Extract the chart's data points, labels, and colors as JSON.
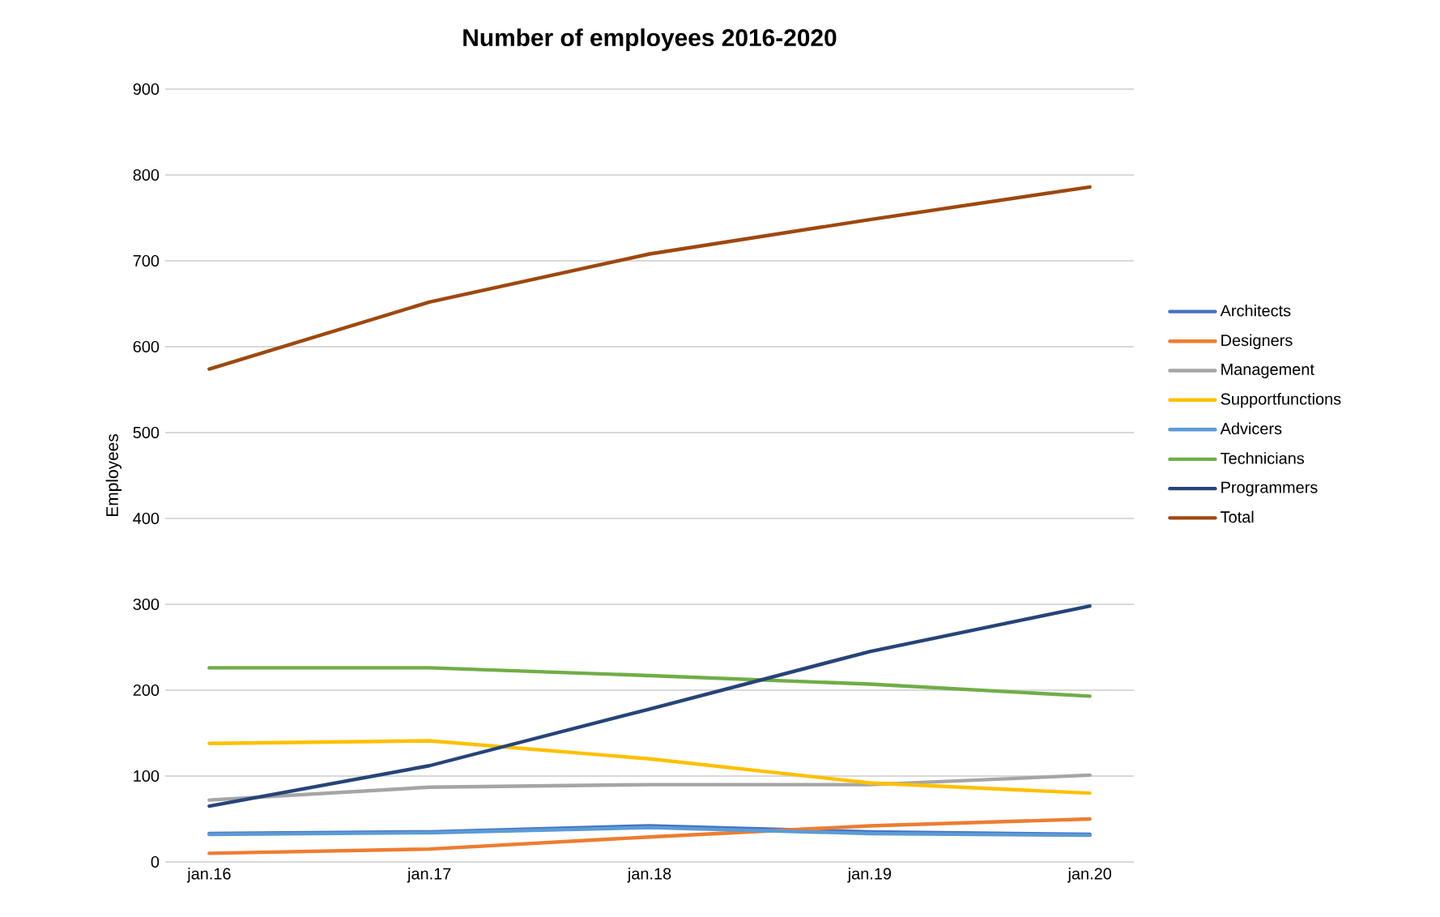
{
  "chart_data": {
    "type": "line",
    "title": "Number of employees 2016-2020",
    "ylabel": "Employees",
    "categories": [
      "jan.16",
      "jan.17",
      "jan.18",
      "jan.19",
      "jan.20"
    ],
    "series": [
      {
        "name": "Architects",
        "color": "#4472c4",
        "values": [
          33,
          35,
          42,
          35,
          32
        ]
      },
      {
        "name": "Designers",
        "color": "#ed7d31",
        "values": [
          10,
          15,
          29,
          42,
          50
        ]
      },
      {
        "name": "Management",
        "color": "#a5a5a5",
        "values": [
          72,
          87,
          90,
          90,
          101
        ]
      },
      {
        "name": "Supportfunctions",
        "color": "#ffc000",
        "values": [
          138,
          141,
          120,
          92,
          80
        ]
      },
      {
        "name": "Advicers",
        "color": "#5b9bd5",
        "values": [
          32,
          34,
          40,
          33,
          31
        ]
      },
      {
        "name": "Technicians",
        "color": "#70ad47",
        "values": [
          226,
          226,
          217,
          207,
          193
        ]
      },
      {
        "name": "Programmers",
        "color": "#264478",
        "values": [
          65,
          112,
          178,
          245,
          298
        ]
      },
      {
        "name": "Total",
        "color": "#9e480e",
        "values": [
          574,
          652,
          708,
          748,
          786
        ]
      }
    ],
    "ylim": [
      0,
      900
    ],
    "yticks": [
      0,
      100,
      200,
      300,
      400,
      500,
      600,
      700,
      800,
      900
    ],
    "grid": "y",
    "legend": "right",
    "marker": "none",
    "line_style": "solid"
  }
}
